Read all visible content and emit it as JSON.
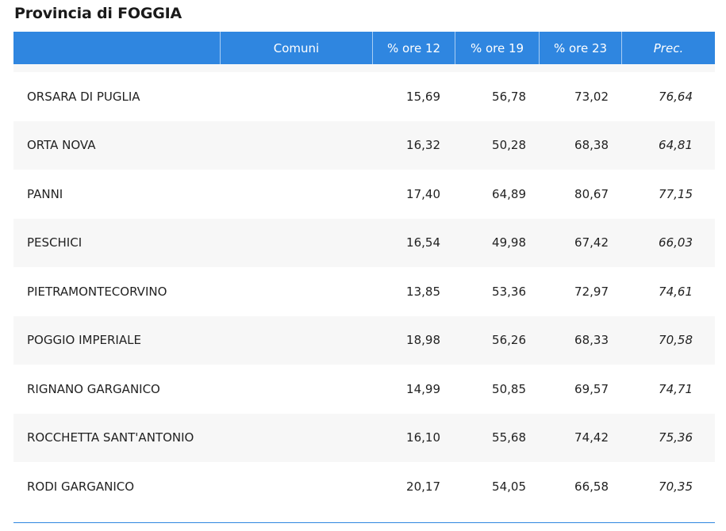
{
  "title": "Provincia di FOGGIA",
  "headers": {
    "blank": "",
    "comuni": "Comuni",
    "ore12": "% ore 12",
    "ore19": "% ore 19",
    "ore23": "% ore 23",
    "prec": "Prec."
  },
  "rows": [
    {
      "comune": "ORSARA DI PUGLIA",
      "ore12": "15,69",
      "ore19": "56,78",
      "ore23": "73,02",
      "prec": "76,64"
    },
    {
      "comune": "ORTA NOVA",
      "ore12": "16,32",
      "ore19": "50,28",
      "ore23": "68,38",
      "prec": "64,81"
    },
    {
      "comune": "PANNI",
      "ore12": "17,40",
      "ore19": "64,89",
      "ore23": "80,67",
      "prec": "77,15"
    },
    {
      "comune": "PESCHICI",
      "ore12": "16,54",
      "ore19": "49,98",
      "ore23": "67,42",
      "prec": "66,03"
    },
    {
      "comune": "PIETRAMONTECORVINO",
      "ore12": "13,85",
      "ore19": "53,36",
      "ore23": "72,97",
      "prec": "74,61"
    },
    {
      "comune": "POGGIO IMPERIALE",
      "ore12": "18,98",
      "ore19": "56,26",
      "ore23": "68,33",
      "prec": "70,58"
    },
    {
      "comune": "RIGNANO GARGANICO",
      "ore12": "14,99",
      "ore19": "50,85",
      "ore23": "69,57",
      "prec": "74,71"
    },
    {
      "comune": "ROCCHETTA SANT'ANTONIO",
      "ore12": "16,10",
      "ore19": "55,68",
      "ore23": "74,42",
      "prec": "75,36"
    },
    {
      "comune": "RODI GARGANICO",
      "ore12": "20,17",
      "ore19": "54,05",
      "ore23": "66,58",
      "prec": "70,35"
    }
  ],
  "colors": {
    "header_bg": "#2f86e0",
    "alt_row_bg": "#f7f7f7"
  }
}
